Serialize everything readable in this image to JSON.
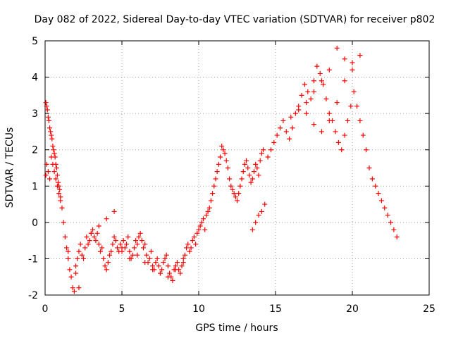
{
  "chart_data": {
    "type": "scatter",
    "title": "Day 082 of 2022, Sidereal Day-to-day VTEC variation (SDTVAR) for receiver p802",
    "xlabel": "GPS time / hours",
    "ylabel": "SDTVAR / TECUs",
    "xlim": [
      0,
      25
    ],
    "ylim": [
      -2,
      5
    ],
    "xticks": [
      0,
      5,
      10,
      15,
      20,
      25
    ],
    "yticks": [
      -2,
      -1,
      0,
      1,
      2,
      3,
      4,
      5
    ],
    "xtick_labels": [
      "0",
      "5",
      "10",
      "15",
      "20",
      "25"
    ],
    "ytick_labels": [
      "-2",
      "-1",
      "0",
      "1",
      "2",
      "3",
      "4",
      "5"
    ],
    "grid": true,
    "marker": "+",
    "color": "#ff0000",
    "series": [
      {
        "name": "SDTVAR",
        "x": [
          0.05,
          0.1,
          0.15,
          0.2,
          0.25,
          0.3,
          0.35,
          0.4,
          0.45,
          0.5,
          0.55,
          0.6,
          0.65,
          0.7,
          0.75,
          0.8,
          0.85,
          0.9,
          0.95,
          1.0,
          0.05,
          0.1,
          0.2,
          0.3,
          0.4,
          0.5,
          0.6,
          0.7,
          0.8,
          0.9,
          1.0,
          1.1,
          1.2,
          1.3,
          1.4,
          1.5,
          1.6,
          1.7,
          1.8,
          1.9,
          2.0,
          2.1,
          2.2,
          2.3,
          2.4,
          2.5,
          2.6,
          2.7,
          2.8,
          2.9,
          3.0,
          3.1,
          3.2,
          3.3,
          3.4,
          3.5,
          3.6,
          3.7,
          3.8,
          3.9,
          4.0,
          4.1,
          4.2,
          4.3,
          4.4,
          4.5,
          4.6,
          4.7,
          4.8,
          4.9,
          5.0,
          5.1,
          5.2,
          5.3,
          5.4,
          5.5,
          5.6,
          5.7,
          5.8,
          5.9,
          6.0,
          6.1,
          6.2,
          6.3,
          6.4,
          6.5,
          6.6,
          6.7,
          6.8,
          6.9,
          7.0,
          7.1,
          7.2,
          7.3,
          7.4,
          7.5,
          7.6,
          7.7,
          7.8,
          7.9,
          8.0,
          8.1,
          8.2,
          8.3,
          8.4,
          8.5,
          8.6,
          8.7,
          8.8,
          8.9,
          9.0,
          9.1,
          9.2,
          9.3,
          9.4,
          9.5,
          9.6,
          9.7,
          9.8,
          9.9,
          10.0,
          10.1,
          10.2,
          10.3,
          10.4,
          10.5,
          10.6,
          10.7,
          10.8,
          10.9,
          11.0,
          11.1,
          11.2,
          11.3,
          11.4,
          11.5,
          11.6,
          11.7,
          11.8,
          11.9,
          12.0,
          12.1,
          12.2,
          12.3,
          12.4,
          12.5,
          12.6,
          12.7,
          12.8,
          12.9,
          13.0,
          13.1,
          13.2,
          13.3,
          13.4,
          13.5,
          13.6,
          13.7,
          13.8,
          13.9,
          14.0,
          14.1,
          14.2,
          13.5,
          13.7,
          13.9,
          14.1,
          14.3,
          14.5,
          14.7,
          14.9,
          15.1,
          15.3,
          15.5,
          15.7,
          15.9,
          16.1,
          16.3,
          16.5,
          16.7,
          16.9,
          17.1,
          17.3,
          17.5,
          17.7,
          17.9,
          18.1,
          18.3,
          18.5,
          18.7,
          18.9,
          19.1,
          19.3,
          19.5,
          19.7,
          19.9,
          20.1,
          20.3,
          20.5,
          20.7,
          20.9,
          21.1,
          21.3,
          21.5,
          21.7,
          21.9,
          22.1,
          22.3,
          22.5,
          22.7,
          22.9,
          5.0,
          5.5,
          6.0,
          6.5,
          7.0,
          7.5,
          8.0,
          8.5,
          9.0,
          3.0,
          3.5,
          4.0,
          4.5,
          1.5,
          2.0,
          2.2,
          17.0,
          17.5,
          18.0,
          18.5,
          19.0,
          19.5,
          20.0,
          20.5,
          16.0,
          16.5,
          17.0,
          17.5,
          18.0,
          18.5,
          19.0,
          19.5,
          20.0
        ],
        "y": [
          3.3,
          3.2,
          3.1,
          2.9,
          2.8,
          2.6,
          2.5,
          2.4,
          2.3,
          2.1,
          2.0,
          1.9,
          1.8,
          1.6,
          1.5,
          1.3,
          1.1,
          1.0,
          0.9,
          0.7,
          1.3,
          1.6,
          1.4,
          1.2,
          1.8,
          1.6,
          1.4,
          1.2,
          1.0,
          0.8,
          0.6,
          0.4,
          0.0,
          -0.4,
          -0.7,
          -1.0,
          -1.3,
          -1.5,
          -1.8,
          -1.9,
          -1.4,
          -1.0,
          -0.8,
          -0.6,
          -0.9,
          -1.0,
          -0.7,
          -0.4,
          -0.6,
          -0.5,
          -0.3,
          -0.2,
          -0.4,
          -0.5,
          -0.3,
          -0.6,
          -0.8,
          -0.7,
          -1.0,
          -1.2,
          -1.3,
          -1.1,
          -0.9,
          -0.8,
          -0.6,
          -0.4,
          -0.5,
          -0.7,
          -0.8,
          -0.6,
          -0.7,
          -0.5,
          -0.7,
          -0.6,
          -0.4,
          -0.8,
          -1.0,
          -0.9,
          -0.7,
          -0.5,
          -0.6,
          -0.4,
          -0.3,
          -0.5,
          -0.7,
          -0.6,
          -0.9,
          -1.1,
          -1.0,
          -0.8,
          -1.2,
          -1.3,
          -1.1,
          -1.0,
          -1.2,
          -1.4,
          -1.3,
          -1.1,
          -1.0,
          -0.9,
          -1.2,
          -1.4,
          -1.5,
          -1.6,
          -1.3,
          -1.2,
          -1.1,
          -1.3,
          -1.4,
          -1.2,
          -1.0,
          -0.9,
          -0.7,
          -0.6,
          -0.8,
          -0.7,
          -0.5,
          -0.4,
          -0.6,
          -0.3,
          -0.2,
          -0.1,
          0.0,
          0.1,
          -0.2,
          0.2,
          0.3,
          0.4,
          0.6,
          0.8,
          1.0,
          1.2,
          1.4,
          1.6,
          1.8,
          2.1,
          2.0,
          1.9,
          1.7,
          1.5,
          1.2,
          1.0,
          0.9,
          0.8,
          0.7,
          0.6,
          0.8,
          1.0,
          1.2,
          1.4,
          1.6,
          1.7,
          1.5,
          1.3,
          1.1,
          1.2,
          1.4,
          1.6,
          1.5,
          1.3,
          1.7,
          1.9,
          2.0,
          -0.2,
          0.0,
          0.2,
          0.3,
          0.5,
          1.8,
          2.0,
          2.2,
          2.4,
          2.6,
          2.8,
          2.5,
          2.3,
          2.6,
          3.0,
          3.2,
          3.5,
          3.8,
          3.6,
          3.4,
          3.9,
          4.3,
          4.1,
          3.8,
          3.4,
          3.0,
          2.8,
          2.5,
          2.2,
          2.0,
          2.4,
          2.8,
          3.2,
          3.6,
          3.2,
          2.8,
          2.4,
          2.0,
          1.5,
          1.2,
          1.0,
          0.8,
          0.6,
          0.4,
          0.2,
          0.0,
          -0.2,
          -0.4,
          -0.8,
          -1.0,
          -0.9,
          -1.1,
          -1.3,
          -1.4,
          -1.5,
          -1.3,
          -1.1,
          -0.3,
          -0.1,
          0.1,
          0.3,
          -0.8,
          -1.2,
          -1.8,
          3.0,
          2.7,
          2.5,
          2.8,
          3.3,
          3.9,
          4.4,
          4.6,
          2.9,
          3.1,
          3.3,
          3.6,
          3.9,
          4.2,
          4.8,
          4.5,
          4.2
        ]
      }
    ]
  }
}
